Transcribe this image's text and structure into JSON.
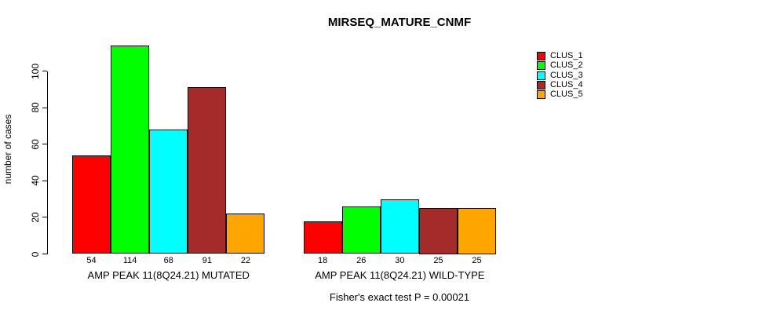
{
  "chart_data": {
    "type": "bar",
    "title": "MIRSEQ_MATURE_CNMF",
    "ylabel": "number of cases",
    "xlabel": "",
    "annotation": "Fisher's exact test P = 0.00021",
    "yticks": [
      0,
      20,
      40,
      60,
      80,
      100
    ],
    "ylim": [
      0,
      114
    ],
    "grid": false,
    "legend_position": "top-right",
    "bar_value_labels_shown": true,
    "series_names": [
      "CLUS_1",
      "CLUS_2",
      "CLUS_3",
      "CLUS_4",
      "CLUS_5"
    ],
    "colors": [
      "#FF0000",
      "#00FF00",
      "#00FFFF",
      "#A52A2A",
      "#FFA500"
    ],
    "categories": [
      "AMP PEAK 11(8Q24.21) MUTATED",
      "AMP PEAK 11(8Q24.21) WILD-TYPE"
    ],
    "groups": [
      {
        "label": "AMP PEAK 11(8Q24.21) MUTATED",
        "values": [
          54,
          114,
          68,
          91,
          22
        ]
      },
      {
        "label": "AMP PEAK 11(8Q24.21) WILD-TYPE",
        "values": [
          18,
          26,
          30,
          25,
          25
        ]
      }
    ]
  },
  "colors": {
    "background": "#FFFFFF",
    "axis": "#000000",
    "text": "#000000"
  }
}
